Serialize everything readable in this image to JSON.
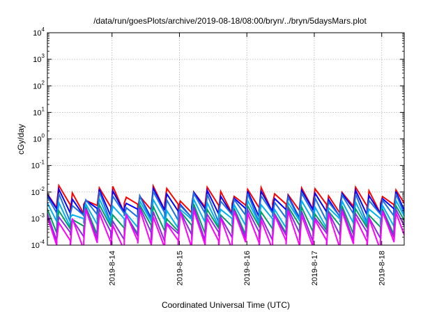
{
  "chart_data": {
    "type": "line",
    "title": "/data/run/goesPlots/archive/2019-08-18/08:00/bryn/../bryn/5daysMars.plot",
    "xlabel": "Coordinated Universal Time (UTC)",
    "ylabel": "cGy/day",
    "x_range_days": [
      "2019-08-13 01:00",
      "2019-08-18 08:00"
    ],
    "x_ticks": [
      "2019-8-14",
      "2019-8-15",
      "2019-8-16",
      "2019-8-17",
      "2019-8-18"
    ],
    "y_scale": "log",
    "ylim": [
      0.0001,
      10000
    ],
    "y_ticks": [
      {
        "base": "10",
        "exp": "-4"
      },
      {
        "base": "10",
        "exp": "-3"
      },
      {
        "base": "10",
        "exp": "-2"
      },
      {
        "base": "10",
        "exp": "-1"
      },
      {
        "base": "10",
        "exp": "0"
      },
      {
        "base": "10",
        "exp": "1"
      },
      {
        "base": "10",
        "exp": "2"
      },
      {
        "base": "10",
        "exp": "3"
      },
      {
        "base": "10",
        "exp": "4"
      }
    ],
    "grid": true,
    "sawtooth_period_hours": 4.8,
    "series": [
      {
        "color": "#ff0000",
        "peak": 0.011,
        "trough": 0.0028
      },
      {
        "color": "#0000ff",
        "peak": 0.0085,
        "trough": 0.0019
      },
      {
        "color": "#1e6fe0",
        "peak": 0.0065,
        "trough": 0.0013
      },
      {
        "color": "#00b0f0",
        "peak": 0.0035,
        "trough": 0.0008
      },
      {
        "color": "#00a060",
        "peak": 0.0022,
        "trough": 0.00045
      },
      {
        "color": "#8a2be2",
        "peak": 0.0017,
        "trough": 0.00025
      },
      {
        "color": "#ff00ff",
        "peak": 0.0014,
        "trough": 0.00012
      }
    ]
  }
}
